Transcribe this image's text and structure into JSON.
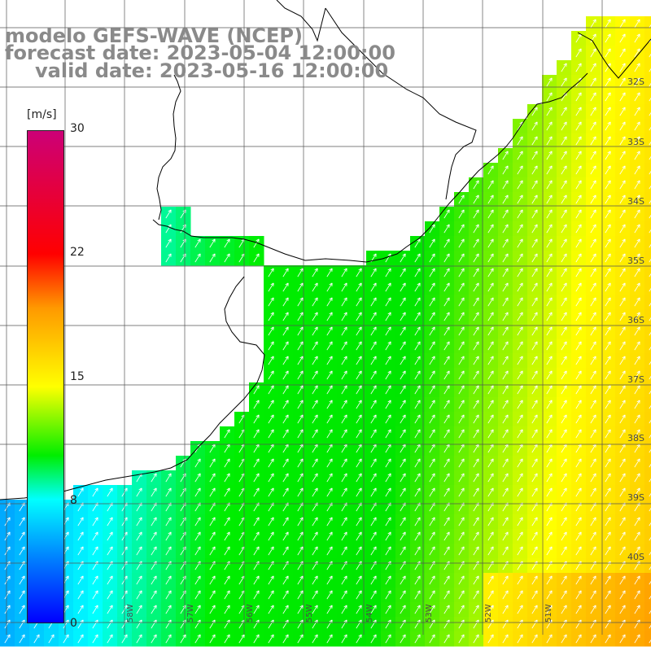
{
  "title": {
    "line1": "modelo GEFS-WAVE (NCEP)",
    "line2": "forecast date: 2023-05-04 12:00:00",
    "line3": "valid date: 2023-05-16 12:00:00"
  },
  "colorbar": {
    "unit": "[m/s]",
    "ticks": [
      "30",
      "22",
      "15",
      "8",
      "0"
    ],
    "tick_values": [
      30,
      22,
      15,
      8,
      0
    ],
    "colors": [
      "#0000ff",
      "#0080ff",
      "#00ffff",
      "#00ee00",
      "#ffff00",
      "#ff9900",
      "#ff0000",
      "#cc0077"
    ]
  },
  "lat_labels": [
    "32S",
    "33S",
    "34S",
    "35S",
    "36S",
    "37S",
    "38S",
    "39S",
    "40S"
  ],
  "lon_labels": [
    "58W",
    "57W",
    "56W",
    "55W",
    "54W",
    "53W",
    "52W",
    "51W"
  ],
  "map": {
    "land_color": "#ffffff",
    "coast_color": "#000000",
    "grid_color": "#555555",
    "arrow_color": "#ffffff"
  }
}
